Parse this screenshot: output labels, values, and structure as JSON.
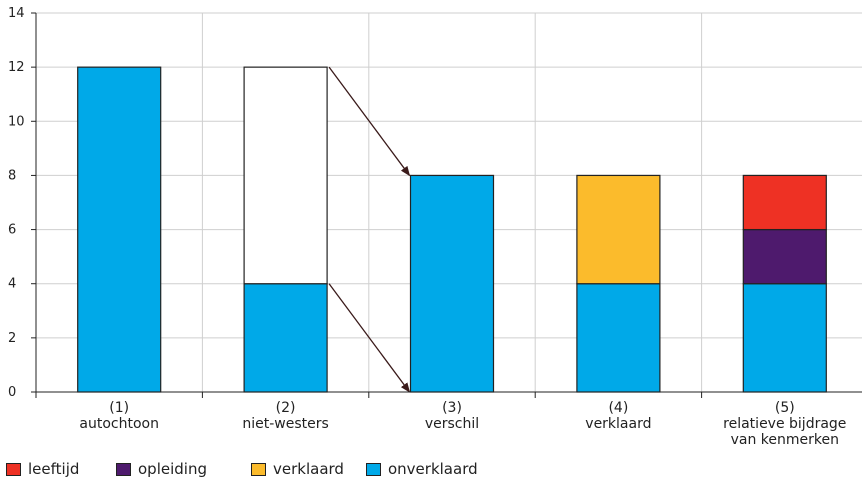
{
  "chart_data": {
    "type": "bar",
    "stacked": true,
    "ylim": [
      0,
      14
    ],
    "yticks": [
      0,
      2,
      4,
      6,
      8,
      10,
      12,
      14
    ],
    "grid": true,
    "legend_position": "bottom-left",
    "categories": [
      [
        "(1)",
        "autochtoon"
      ],
      [
        "(2)",
        "niet-westers"
      ],
      [
        "(3)",
        "verschil"
      ],
      [
        "(4)",
        "verklaard"
      ],
      [
        "(5)",
        "relatieve bijdrage",
        "van kenmerken"
      ]
    ],
    "series": [
      {
        "name": "onverklaard",
        "color": "#00a9e8",
        "values": [
          12,
          4,
          8,
          4,
          4
        ]
      },
      {
        "name": "",
        "color": "#ffffff",
        "values": [
          0,
          8,
          0,
          0,
          0
        ]
      },
      {
        "name": "verklaard",
        "color": "#fbbb2c",
        "values": [
          0,
          0,
          0,
          4,
          0
        ]
      },
      {
        "name": "opleiding",
        "color": "#4e1a6d",
        "values": [
          0,
          0,
          0,
          0,
          2
        ]
      },
      {
        "name": "leeftijd",
        "color": "#ee3124",
        "values": [
          0,
          0,
          0,
          0,
          2
        ]
      }
    ],
    "arrows": [
      {
        "from": [
          1,
          12
        ],
        "to": [
          2,
          8
        ]
      },
      {
        "from": [
          1,
          4
        ],
        "to": [
          2,
          0
        ]
      }
    ],
    "legend": [
      {
        "name": "leeftijd",
        "color": "#ee3124"
      },
      {
        "name": "opleiding",
        "color": "#4e1a6d"
      },
      {
        "name": "verklaard",
        "color": "#fbbb2c"
      },
      {
        "name": "onverklaard",
        "color": "#00a9e8"
      }
    ]
  }
}
